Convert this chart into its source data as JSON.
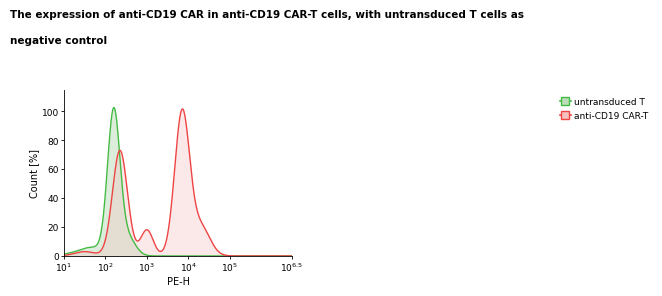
{
  "title_line1": "The expression of anti-CD19 CAR in anti-CD19 CAR-T cells, with untransduced T cells as",
  "title_line2": "negative control",
  "xlabel": "PE-H",
  "ylabel": "Count [%]",
  "xlim_log": [
    1,
    6.5
  ],
  "ylim": [
    0,
    115
  ],
  "yticks": [
    0,
    20,
    40,
    60,
    80,
    100
  ],
  "xtick_positions": [
    1,
    2,
    3,
    4,
    5,
    6.5
  ],
  "legend_labels": [
    "untransduced T",
    "anti-CD19 CAR-T"
  ],
  "untransduced_color": "#44bb44",
  "cart_color": "#ee4444",
  "untransduced_fill": "#bbddbb",
  "cart_fill": "#f5c0c0",
  "background_color": "#ffffff",
  "title_fontsize": 7.5,
  "axis_fontsize": 7,
  "tick_fontsize": 6.5,
  "legend_fontsize": 6.5
}
